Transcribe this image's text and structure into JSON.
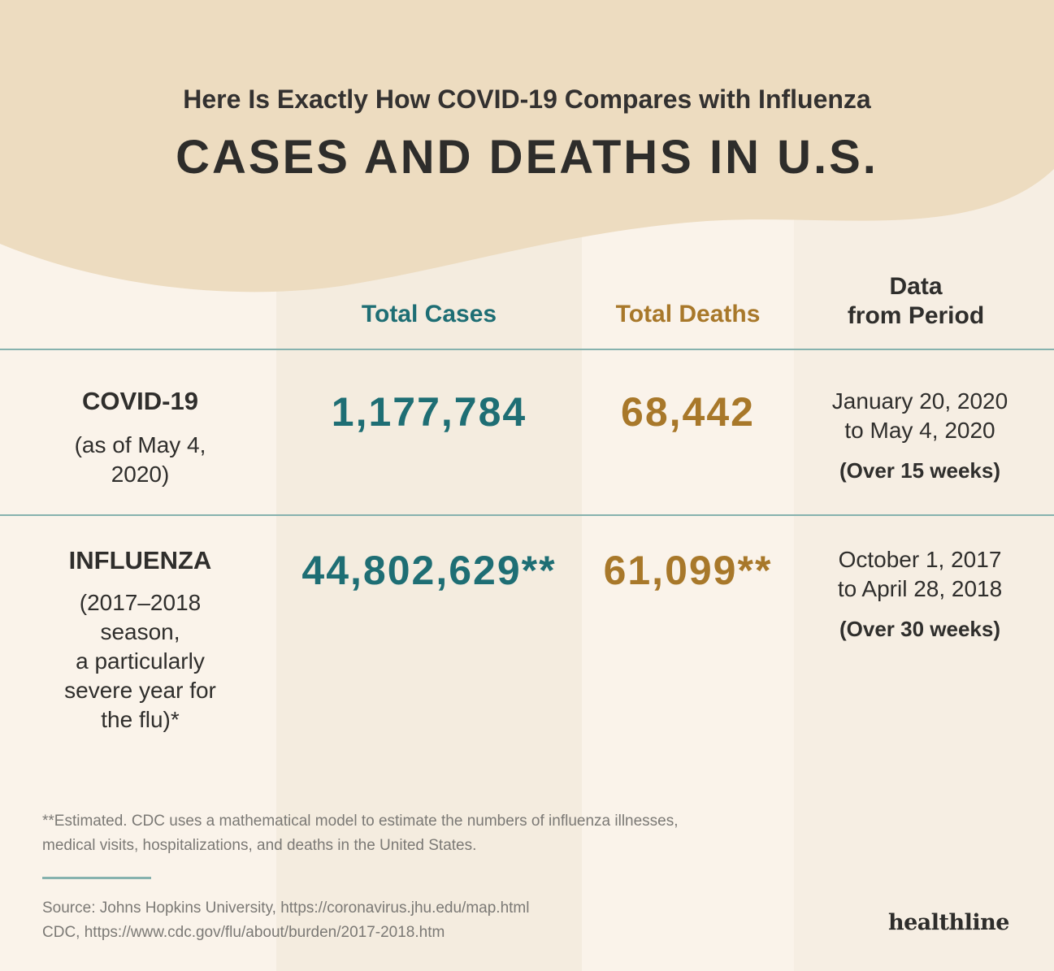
{
  "header": {
    "subtitle": "Here Is Exactly How COVID-19 Compares with Influenza",
    "title": "CASES AND DEATHS IN U.S."
  },
  "columns": {
    "cases": "Total Cases",
    "deaths": "Total Deaths",
    "period_line1": "Data",
    "period_line2": "from Period"
  },
  "rows": [
    {
      "name": "COVID-19",
      "note_lines": [
        "(as of May 4,",
        "2020)"
      ],
      "cases": "1,177,784",
      "deaths": "68,442",
      "period_lines": [
        "January 20, 2020",
        "to May 4, 2020"
      ],
      "weeks": "(Over 15 weeks)"
    },
    {
      "name": "INFLUENZA",
      "note_lines": [
        "(2017–2018",
        "season,",
        "a particularly",
        "severe year for",
        "the flu)*"
      ],
      "cases": "44,802,629**",
      "deaths": "61,099**",
      "period_lines": [
        "October 1, 2017",
        "to April 28, 2018"
      ],
      "weeks": "(Over 30 weeks)"
    }
  ],
  "footnote_lines": [
    "**Estimated. CDC uses a mathematical model to estimate the numbers of influenza illnesses,",
    "medical visits, hospitalizations, and deaths in the United States."
  ],
  "source_lines": [
    "Source: Johns Hopkins University, https://coronavirus.jhu.edu/map.html",
    "CDC, https://www.cdc.gov/flu/about/burden/2017-2018.htm"
  ],
  "brand": "healthline",
  "colors": {
    "teal": "#1e6e74",
    "gold": "#a8782a",
    "wave": "#eddcc0",
    "background": "#faf3ea"
  }
}
